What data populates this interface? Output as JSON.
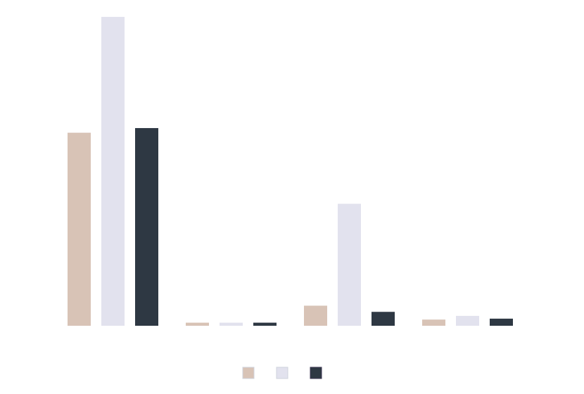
{
  "chart_data": {
    "type": "bar",
    "title": "",
    "xlabel": "",
    "ylabel": "",
    "categories": [
      "",
      "",
      "",
      ""
    ],
    "ylim": [
      0,
      100
    ],
    "grid": false,
    "legend_position": "bottom-center",
    "series": [
      {
        "color": "#d8c3b6",
        "values": [
          62.5,
          1.0,
          6.5,
          2.0
        ]
      },
      {
        "color": "#e2e2ee",
        "values": [
          100.0,
          1.0,
          39.5,
          3.2
        ]
      },
      {
        "color": "#2e3843",
        "values": [
          64.0,
          1.0,
          4.5,
          2.3
        ]
      }
    ]
  }
}
